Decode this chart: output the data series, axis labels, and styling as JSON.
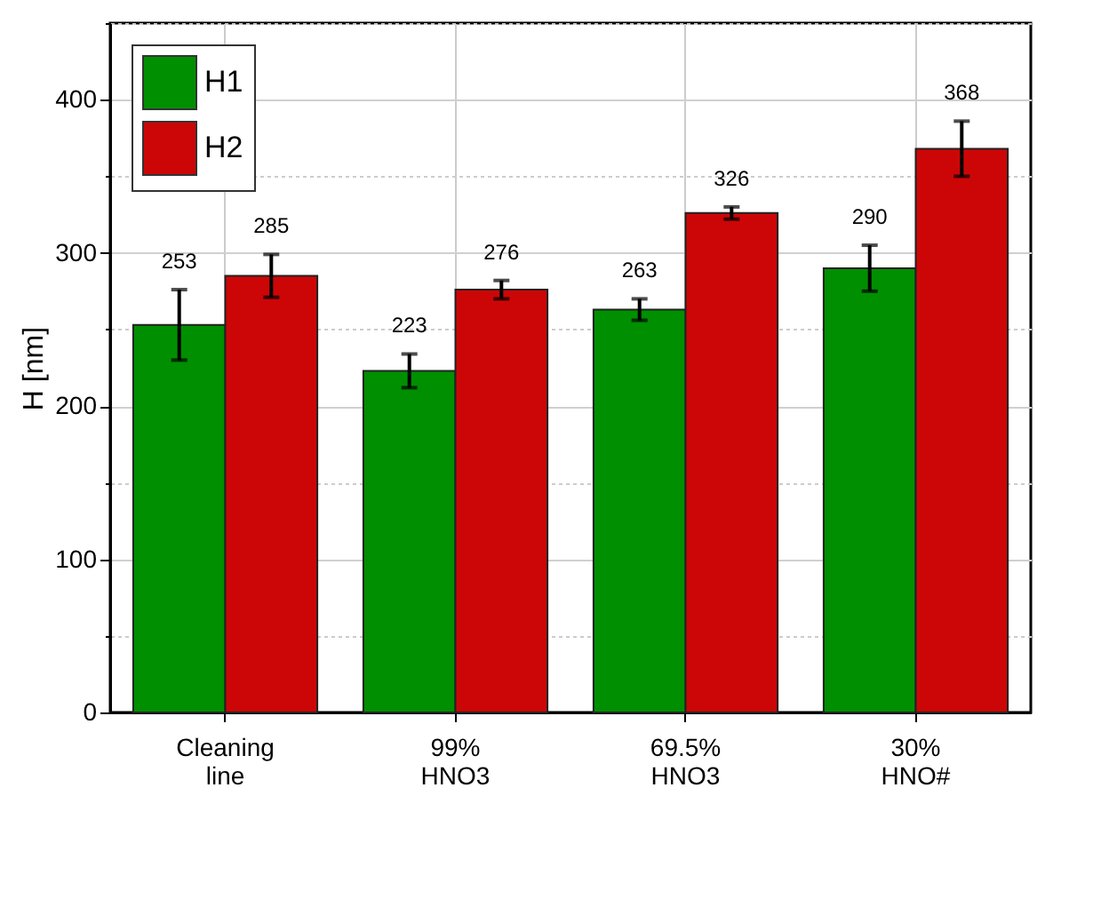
{
  "chart_data": {
    "type": "bar",
    "ylabel": "H [nm]",
    "categories": [
      "Cleaning line",
      "99% HNO3",
      "69.5% HNO3",
      "30% HNO#"
    ],
    "series": [
      {
        "name": "H1",
        "color": "#008f00",
        "values": [
          253,
          223,
          263,
          290
        ],
        "errors": [
          23,
          11,
          7,
          15
        ]
      },
      {
        "name": "H2",
        "color": "#cc0606",
        "values": [
          285,
          276,
          326,
          368
        ],
        "errors": [
          14,
          6,
          4,
          18
        ]
      }
    ],
    "ylim": [
      0,
      450
    ],
    "yticks": [
      0,
      {
        "value": 50,
        "label": null
      },
      100,
      {
        "value": 150,
        "label": null
      },
      200,
      {
        "value": 250,
        "label": null
      },
      300,
      {
        "value": 350,
        "label": null
      },
      400,
      {
        "value": 450,
        "label": null
      }
    ],
    "data_labels": true,
    "grid": true,
    "legend": "top left"
  }
}
